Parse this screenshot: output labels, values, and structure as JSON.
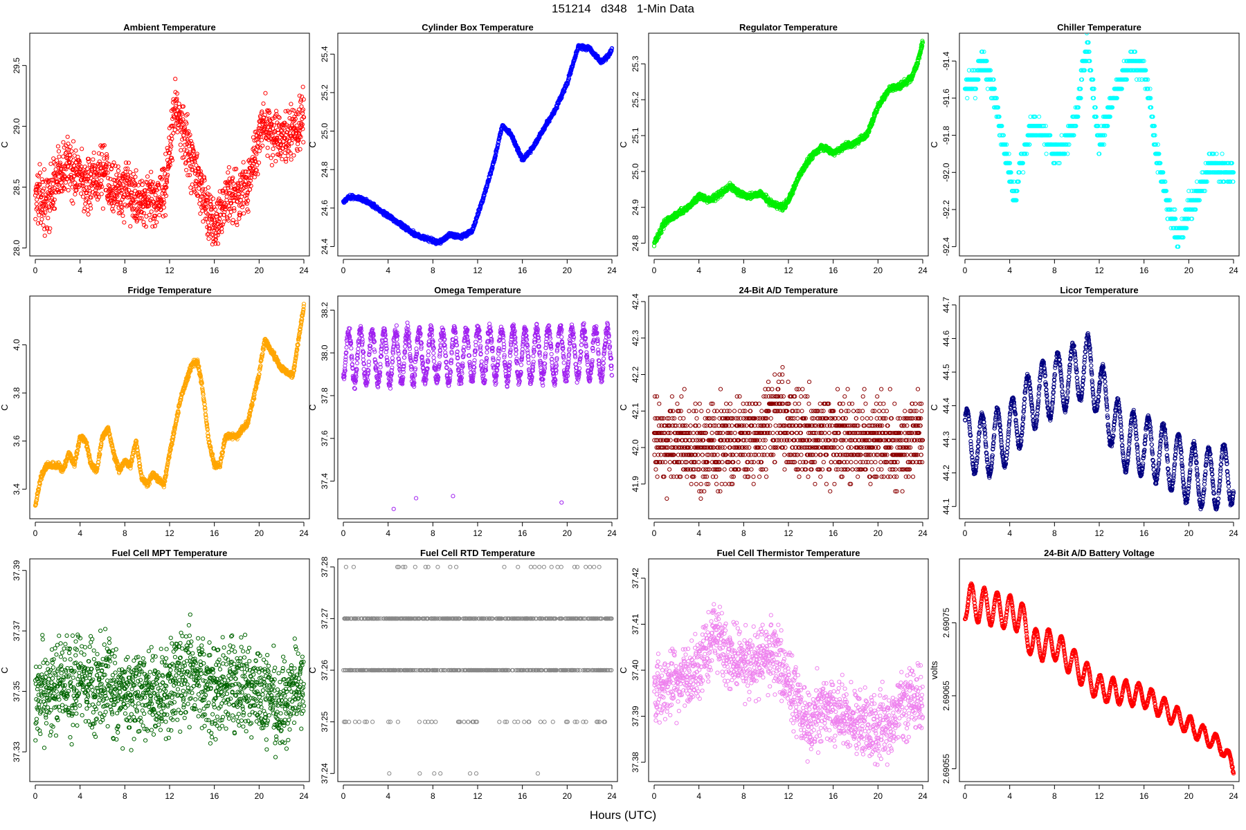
{
  "figure": {
    "title": "151214   d348   1-Min Data",
    "xlabel": "Hours (UTC)"
  },
  "chart_data": [
    {
      "type": "scatter",
      "title": "Ambient Temperature",
      "ylabel": "C",
      "color": "#ff0000",
      "xlim": [
        0,
        24
      ],
      "ylim": [
        27.98,
        29.72
      ],
      "xticks": [
        "0",
        "4",
        "8",
        "12",
        "16",
        "20",
        "24"
      ],
      "yticks": [
        "28.0",
        "28.5",
        "29.0",
        "29.5"
      ],
      "x": [
        0,
        1,
        2,
        3,
        4,
        5,
        6,
        7,
        8,
        9,
        10,
        11,
        11.8,
        12.5,
        13,
        14,
        15,
        16,
        17,
        18,
        19,
        20,
        20.5,
        21,
        22,
        23,
        24
      ],
      "y": [
        28.45,
        28.35,
        28.6,
        28.7,
        28.55,
        28.5,
        28.65,
        28.5,
        28.45,
        28.4,
        28.4,
        28.35,
        28.6,
        29.2,
        29.05,
        28.7,
        28.4,
        28.2,
        28.4,
        28.45,
        28.5,
        28.9,
        29.05,
        28.95,
        28.9,
        28.95,
        29.05
      ],
      "noise": 0.11
    },
    {
      "type": "scatter",
      "title": "Cylinder Box Temperature",
      "ylabel": "C",
      "color": "#0000ff",
      "xlim": [
        0,
        24
      ],
      "ylim": [
        24.38,
        25.48
      ],
      "xticks": [
        "0",
        "4",
        "8",
        "12",
        "16",
        "20",
        "24"
      ],
      "yticks": [
        "24.4",
        "24.6",
        "24.8",
        "25.0",
        "25.2",
        "25.4"
      ],
      "x": [
        0,
        0.5,
        1.5,
        2.5,
        3.5,
        4.5,
        5.5,
        6.5,
        7.5,
        8.5,
        9.5,
        10.5,
        11.5,
        12.5,
        13.5,
        14.2,
        15,
        16,
        17,
        18,
        19,
        20,
        21,
        22,
        23,
        23.5,
        24
      ],
      "y": [
        24.63,
        24.66,
        24.65,
        24.62,
        24.58,
        24.54,
        24.5,
        24.46,
        24.44,
        24.42,
        24.46,
        24.45,
        24.48,
        24.65,
        24.85,
        25.03,
        24.98,
        24.85,
        24.92,
        25.02,
        25.12,
        25.25,
        25.44,
        25.43,
        25.36,
        25.38,
        25.42
      ],
      "noise": 0.005
    },
    {
      "type": "scatter",
      "title": "Regulator Temperature",
      "ylabel": "C",
      "color": "#00ee00",
      "xlim": [
        0,
        24
      ],
      "ylim": [
        24.78,
        25.37
      ],
      "xticks": [
        "0",
        "4",
        "8",
        "12",
        "16",
        "20",
        "24"
      ],
      "yticks": [
        "24.8",
        "24.9",
        "25.0",
        "25.1",
        "25.2",
        "25.3"
      ],
      "x": [
        0,
        0.5,
        1,
        2,
        3,
        4,
        5,
        6,
        6.8,
        7.5,
        8.5,
        9.5,
        10.5,
        11.5,
        12,
        13,
        14,
        15,
        16,
        17,
        18,
        19,
        20,
        21,
        22,
        23,
        23.5,
        24
      ],
      "y": [
        24.8,
        24.83,
        24.86,
        24.88,
        24.9,
        24.93,
        24.92,
        24.94,
        24.96,
        24.94,
        24.93,
        24.94,
        24.91,
        24.9,
        24.92,
        24.99,
        25.04,
        25.07,
        25.05,
        25.07,
        25.08,
        25.1,
        25.18,
        25.23,
        25.24,
        25.26,
        25.3,
        25.36
      ],
      "noise": 0.004
    },
    {
      "type": "scatter",
      "title": "Chiller Temperature",
      "ylabel": "C",
      "color": "#00ffff",
      "xlim": [
        0,
        24
      ],
      "ylim": [
        -92.42,
        -91.28
      ],
      "xticks": [
        "0",
        "4",
        "8",
        "12",
        "16",
        "20",
        "24"
      ],
      "yticks": [
        "-92.4",
        "-92.2",
        "-92.0",
        "-91.8",
        "-91.6",
        "-91.4"
      ],
      "x": [
        0,
        1,
        1.5,
        2,
        2.5,
        3,
        3.5,
        4,
        4.5,
        5,
        6,
        7,
        8,
        9,
        10,
        10.5,
        11,
        11.5,
        12,
        13,
        14,
        15,
        16,
        16.5,
        17,
        17.5,
        18,
        18.5,
        19,
        19.5,
        20,
        21,
        22,
        23,
        24
      ],
      "y": [
        -91.55,
        -91.5,
        -91.4,
        -91.45,
        -91.55,
        -91.7,
        -91.85,
        -92.0,
        -92.15,
        -91.95,
        -91.75,
        -91.8,
        -91.9,
        -91.85,
        -91.7,
        -91.45,
        -91.3,
        -91.6,
        -91.85,
        -91.65,
        -91.5,
        -91.4,
        -91.45,
        -91.6,
        -91.85,
        -92.0,
        -92.15,
        -92.25,
        -92.35,
        -92.3,
        -92.2,
        -92.1,
        -91.95,
        -92.0,
        -92.0
      ],
      "noise": 0.03,
      "quantum": 0.05
    },
    {
      "type": "scatter",
      "title": "Fridge Temperature",
      "ylabel": "C",
      "color": "#ffa500",
      "xlim": [
        0,
        24
      ],
      "ylim": [
        3.3,
        4.18
      ],
      "xticks": [
        "0",
        "4",
        "8",
        "12",
        "16",
        "20",
        "24"
      ],
      "yticks": [
        "3.4",
        "3.6",
        "3.8",
        "4.0"
      ],
      "x": [
        0,
        0.5,
        1,
        2,
        2.5,
        3,
        3.5,
        4,
        4.5,
        5,
        5.5,
        6,
        6.5,
        7,
        7.5,
        8,
        8.5,
        9,
        9.5,
        10,
        10.5,
        11,
        11.5,
        12,
        12.5,
        13,
        13.5,
        14,
        14.5,
        15,
        15.5,
        16,
        16.5,
        17,
        18,
        19,
        20,
        20.5,
        21,
        22,
        23,
        24
      ],
      "y": [
        3.33,
        3.45,
        3.5,
        3.5,
        3.48,
        3.55,
        3.5,
        3.62,
        3.6,
        3.5,
        3.48,
        3.62,
        3.65,
        3.55,
        3.48,
        3.52,
        3.5,
        3.6,
        3.45,
        3.42,
        3.46,
        3.44,
        3.42,
        3.55,
        3.66,
        3.78,
        3.85,
        3.92,
        3.93,
        3.8,
        3.6,
        3.5,
        3.5,
        3.62,
        3.62,
        3.68,
        3.88,
        4.02,
        3.98,
        3.9,
        3.87,
        4.16
      ],
      "noise": 0.006
    },
    {
      "type": "scatter",
      "title": "Omega Temperature",
      "ylabel": "C",
      "color": "#a020f0",
      "xlim": [
        0,
        24
      ],
      "ylim": [
        37.25,
        38.24
      ],
      "xticks": [
        "0",
        "4",
        "8",
        "12",
        "16",
        "20",
        "24"
      ],
      "yticks": [
        "37.4",
        "37.6",
        "37.8",
        "38.0",
        "38.2"
      ],
      "x": [
        0,
        24
      ],
      "y": [
        37.98,
        38.0
      ],
      "noise": 0.015,
      "osc": 0.12,
      "period": 1.05,
      "outliers": [
        [
          4.5,
          37.27
        ],
        [
          6.5,
          37.32
        ],
        [
          9.8,
          37.33
        ],
        [
          19.5,
          37.3
        ]
      ]
    },
    {
      "type": "scatter",
      "title": "24-Bit A/D Temperature",
      "ylabel": "C",
      "color": "#8b0000",
      "xlim": [
        0,
        24
      ],
      "ylim": [
        41.82,
        42.4
      ],
      "xticks": [
        "0",
        "4",
        "8",
        "12",
        "16",
        "20",
        "24"
      ],
      "yticks": [
        "41.9",
        "42.0",
        "42.1",
        "42.2",
        "42.3",
        "42.4"
      ],
      "x": [
        0,
        4,
        8,
        10,
        11,
        12,
        16,
        20,
        22,
        24
      ],
      "y": [
        42.02,
        42.0,
        42.02,
        42.05,
        42.1,
        42.05,
        42.02,
        42.02,
        42.0,
        42.05
      ],
      "noise": 0.055,
      "quantum": 0.02
    },
    {
      "type": "scatter",
      "title": "Licor Temperature",
      "ylabel": "C",
      "color": "#000080",
      "xlim": [
        0,
        24
      ],
      "ylim": [
        44.08,
        44.71
      ],
      "xticks": [
        "0",
        "4",
        "8",
        "12",
        "16",
        "20",
        "24"
      ],
      "yticks": [
        "44.1",
        "44.2",
        "44.3",
        "44.4",
        "44.5",
        "44.6",
        "44.7"
      ],
      "x": [
        0,
        2,
        4,
        6,
        8,
        10,
        11,
        12,
        14,
        16,
        18,
        20,
        22,
        24
      ],
      "y": [
        44.3,
        44.28,
        44.32,
        44.42,
        44.46,
        44.5,
        44.52,
        44.45,
        44.3,
        44.28,
        44.25,
        44.2,
        44.18,
        44.2
      ],
      "noise": 0.004,
      "osc": 0.09,
      "period": 1.35
    },
    {
      "type": "scatter",
      "title": "Fuel Cell MPT Temperature",
      "ylabel": "C",
      "color": "#006400",
      "xlim": [
        0,
        24
      ],
      "ylim": [
        37.322,
        37.392
      ],
      "xticks": [
        "0",
        "4",
        "8",
        "12",
        "16",
        "20",
        "24"
      ],
      "yticks": [
        "37.33",
        "37.35",
        "37.37",
        "37.39"
      ],
      "x": [
        0,
        2,
        4,
        6,
        8,
        10,
        12,
        14,
        16,
        18,
        20,
        22,
        24
      ],
      "y": [
        37.348,
        37.354,
        37.352,
        37.352,
        37.35,
        37.348,
        37.352,
        37.355,
        37.352,
        37.352,
        37.35,
        37.345,
        37.352
      ],
      "noise": 0.0075
    },
    {
      "type": "scatter",
      "title": "Fuel Cell RTD Temperature",
      "ylabel": "C",
      "color": "#888888",
      "xlim": [
        0,
        24
      ],
      "ylim": [
        37.2395,
        37.2805
      ],
      "xticks": [
        "0",
        "4",
        "8",
        "12",
        "16",
        "20",
        "24"
      ],
      "yticks": [
        "37.24",
        "37.25",
        "37.26",
        "37.27",
        "37.28"
      ],
      "levels": [
        37.24,
        37.25,
        37.26,
        37.27,
        37.28
      ],
      "weights": [
        0.005,
        0.06,
        0.45,
        0.46,
        0.025
      ]
    },
    {
      "type": "scatter",
      "title": "Fuel Cell Thermistor Temperature",
      "ylabel": "C",
      "color": "#ee82ee",
      "xlim": [
        0,
        24
      ],
      "ylim": [
        37.377,
        37.423
      ],
      "xticks": [
        "0",
        "4",
        "8",
        "12",
        "16",
        "20",
        "24"
      ],
      "yticks": [
        "37.38",
        "37.39",
        "37.40",
        "37.41",
        "37.42"
      ],
      "x": [
        0,
        2,
        4,
        5.5,
        7,
        9,
        10.5,
        12,
        13.5,
        15,
        17,
        19,
        20,
        22,
        24
      ],
      "y": [
        37.395,
        37.398,
        37.4,
        37.408,
        37.402,
        37.402,
        37.404,
        37.398,
        37.388,
        37.392,
        37.39,
        37.388,
        37.386,
        37.392,
        37.394
      ],
      "noise": 0.0035
    },
    {
      "type": "scatter",
      "title": "24-Bit A/D Battery Voltage",
      "ylabel": "volts",
      "color": "#ff0000",
      "xlim": [
        0,
        24
      ],
      "ylim": [
        2.69054,
        2.69083
      ],
      "xticks": [
        "0",
        "4",
        "8",
        "12",
        "16",
        "20",
        "24"
      ],
      "yticks": [
        "2.69055",
        "2.69065",
        "2.69075"
      ],
      "x": [
        0,
        5,
        6,
        8,
        10,
        12,
        16,
        20,
        23,
        24
      ],
      "y": [
        2.69078,
        2.69076,
        2.69072,
        2.69072,
        2.69069,
        2.69066,
        2.69065,
        2.69061,
        2.69058,
        2.69055
      ],
      "noise": 8e-07,
      "osc": 2.5e-05,
      "period": 1.15,
      "osc_decay": 0.6
    }
  ]
}
